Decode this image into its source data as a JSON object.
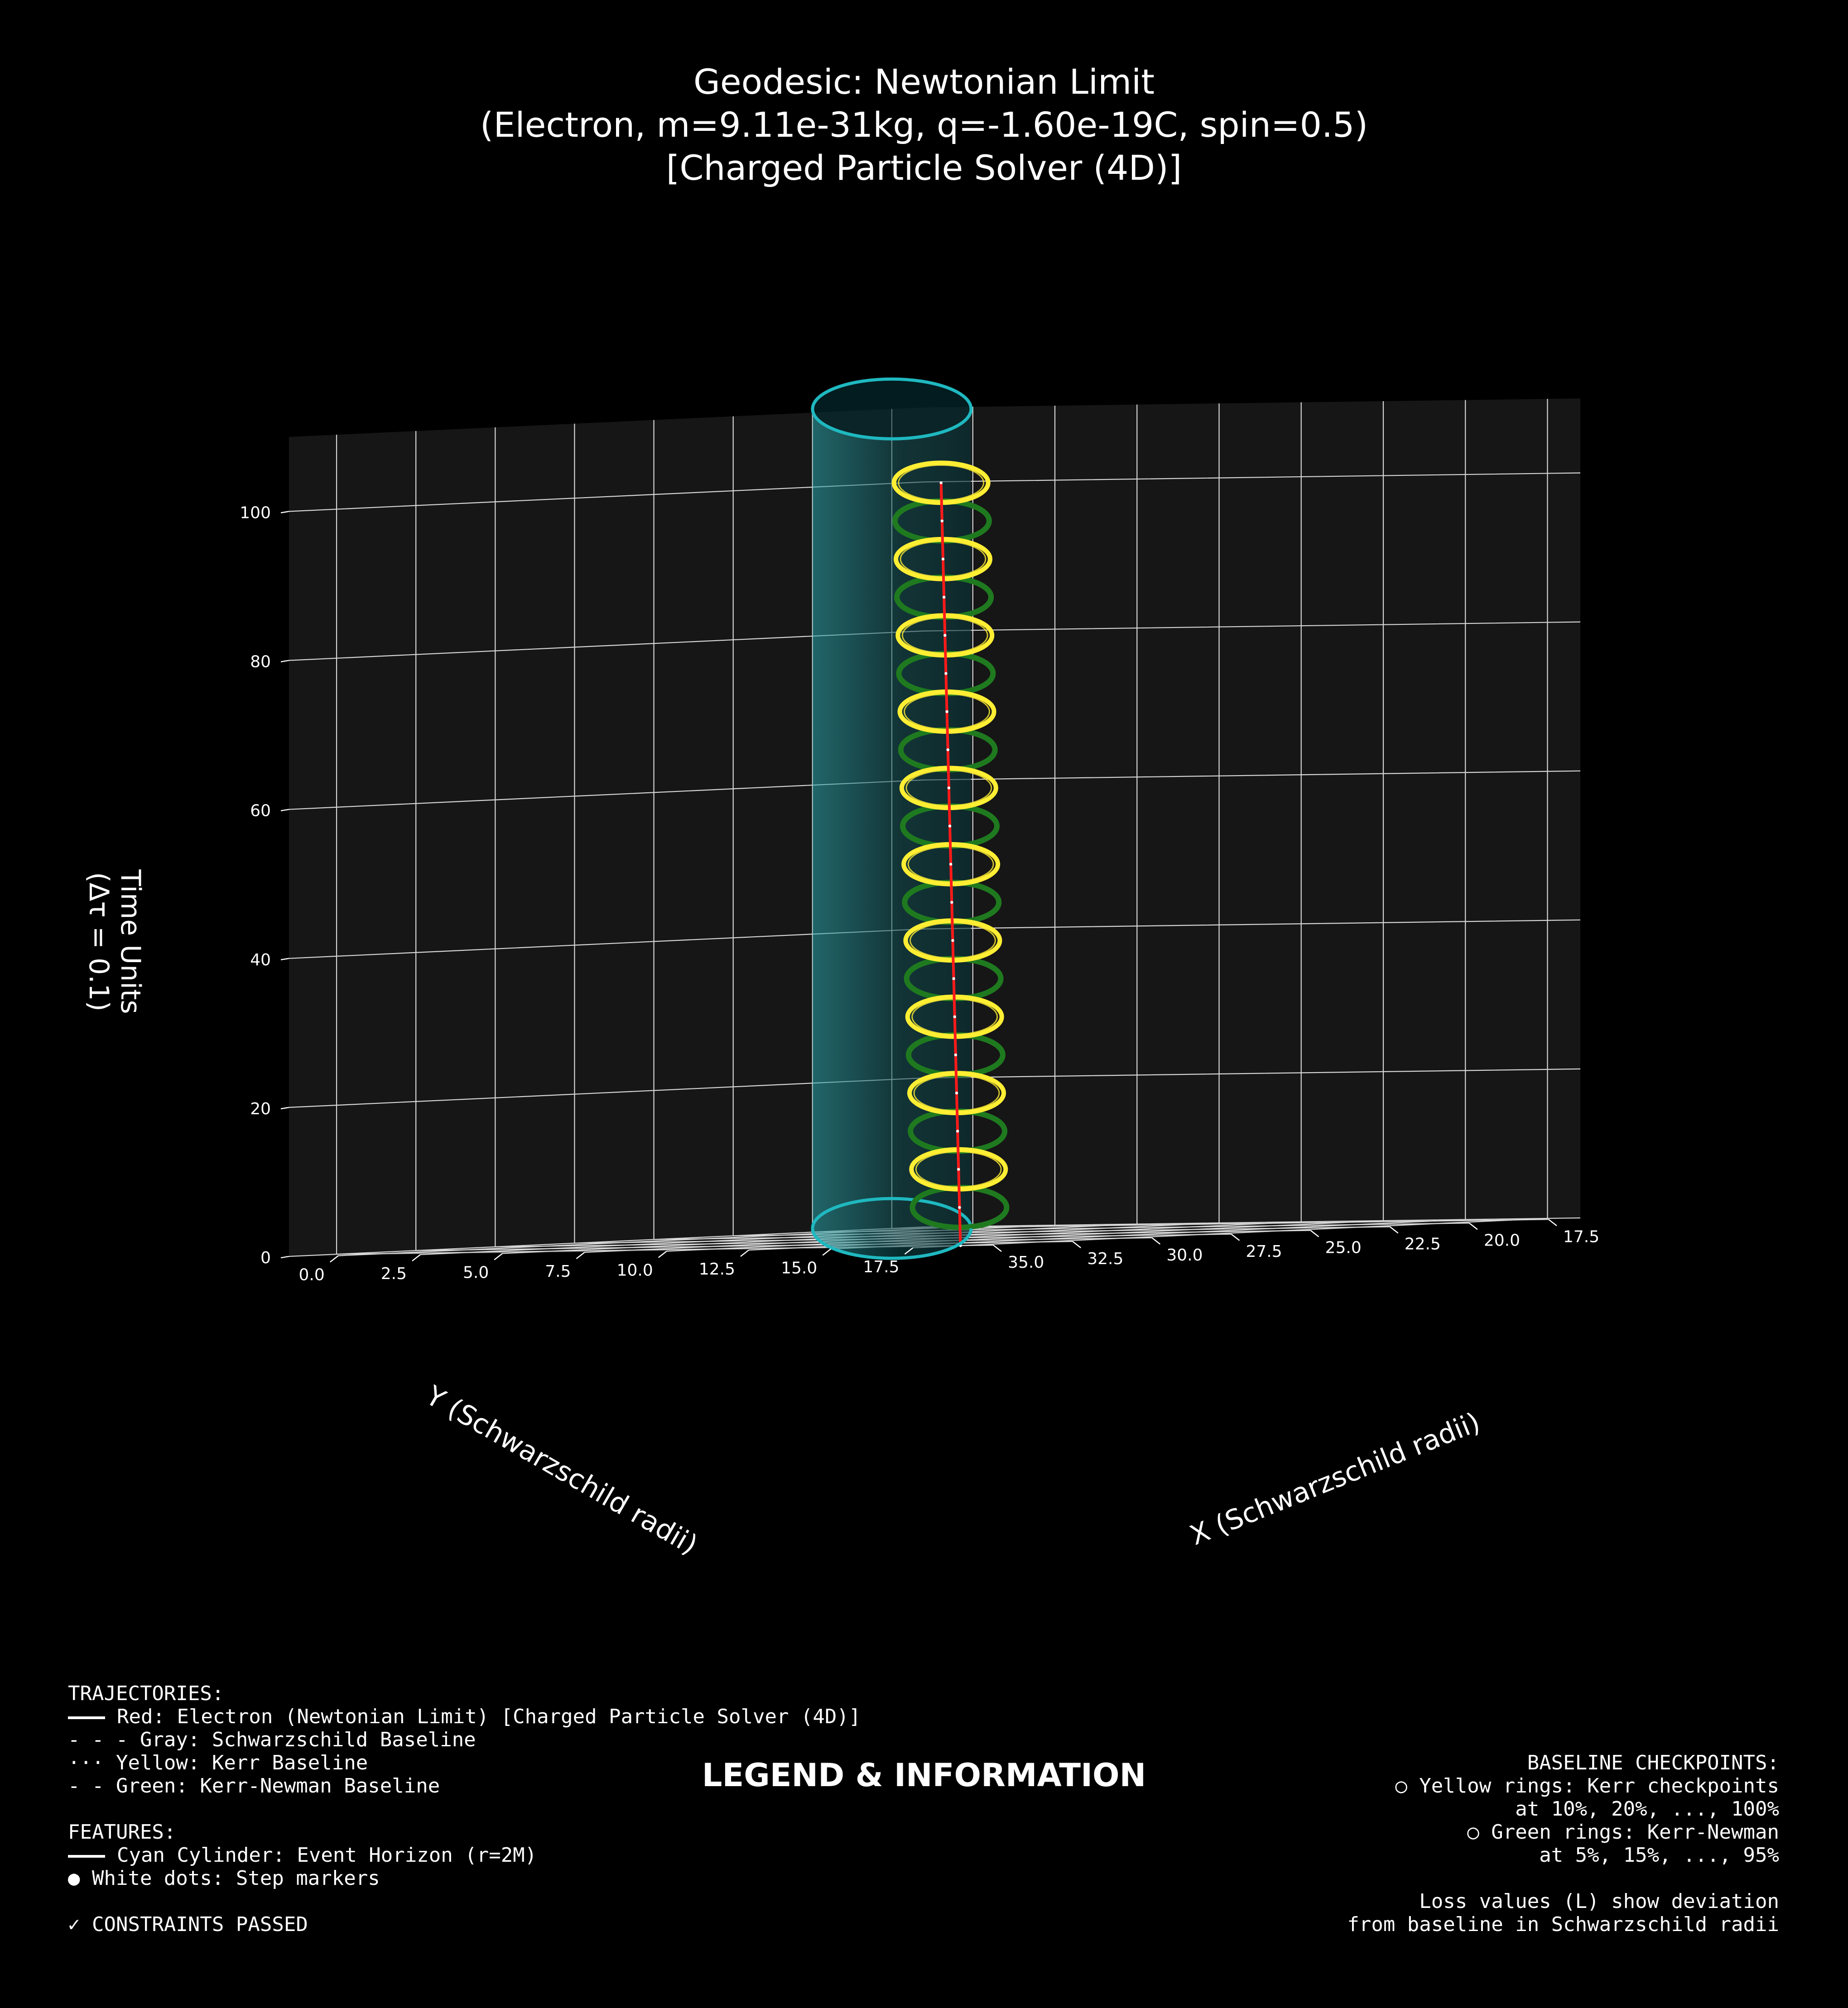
{
  "chart_data": {
    "type": "line",
    "projection": "3d",
    "title_lines": [
      "Geodesic: Newtonian Limit",
      "(Electron, m=9.11e-31kg, q=-1.60e-19C, spin=0.5)",
      "[Charged Particle Solver (4D)]"
    ],
    "xlabel": "X (Schwarzschild radii)",
    "ylabel": "Y (Schwarzschild radii)",
    "zlabel_lines": [
      "Time Units",
      "(Δτ = 0.1)"
    ],
    "xlim": [
      16.5,
      36.5
    ],
    "ylim": [
      -1.5,
      18.5
    ],
    "zlim": [
      0,
      110
    ],
    "x_ticks": [
      "17.5",
      "20.0",
      "22.5",
      "25.0",
      "27.5",
      "30.0",
      "32.5",
      "35.0"
    ],
    "y_ticks": [
      "0.0",
      "2.5",
      "5.0",
      "7.5",
      "10.0",
      "12.5",
      "15.0",
      "17.5"
    ],
    "z_ticks": [
      "0",
      "20",
      "40",
      "60",
      "80",
      "100"
    ],
    "grid": true,
    "colors": {
      "background": "#000000",
      "pane": "#161616",
      "trajectory": "#ff1a1a",
      "kerr_ring": "#ffee33",
      "kerr_newman_ring": "#1f7a1f",
      "horizon": "#1fb8c0",
      "step_marker": "#ffffff"
    },
    "series": [
      {
        "name": "Electron (Newtonian Limit) [Charged Particle Solver (4D)]",
        "start": [
          35.0,
          17.5,
          0
        ],
        "end": [
          17.5,
          0.0,
          100
        ]
      }
    ],
    "kerr_checkpoints": {
      "fractions": [
        0.1,
        0.2,
        0.3,
        0.4,
        0.5,
        0.6,
        0.7,
        0.8,
        0.9,
        1.0
      ],
      "radius": 1.0
    },
    "kerr_newman_checkpoints": {
      "fractions": [
        0.05,
        0.15,
        0.25,
        0.35,
        0.45,
        0.55,
        0.65,
        0.75,
        0.85,
        0.95
      ],
      "radius": 1.0
    },
    "event_horizon": {
      "center": [
        17.5,
        -1.5
      ],
      "radius": 1.0,
      "z_range": [
        0,
        110
      ]
    },
    "step_marker_count": 20
  },
  "legend": {
    "heading": "LEGEND & INFORMATION",
    "left_lines": [
      {
        "marker": "",
        "text": "TRAJECTORIES:"
      },
      {
        "marker": "line",
        "text": "Red: Electron (Newtonian Limit) [Charged Particle Solver (4D)]"
      },
      {
        "marker": "",
        "text": "- - - Gray: Schwarzschild Baseline"
      },
      {
        "marker": "",
        "text": "··· Yellow: Kerr Baseline"
      },
      {
        "marker": "",
        "text": "- - Green: Kerr-Newman Baseline"
      },
      {
        "marker": "",
        "text": ""
      },
      {
        "marker": "",
        "text": "FEATURES:"
      },
      {
        "marker": "line",
        "text": "Cyan Cylinder: Event Horizon (r=2M)"
      },
      {
        "marker": "",
        "text": "● White dots: Step markers"
      },
      {
        "marker": "",
        "text": ""
      },
      {
        "marker": "",
        "text": "✓ CONSTRAINTS PASSED"
      }
    ],
    "right_lines": [
      "BASELINE CHECKPOINTS:",
      "○ Yellow rings: Kerr checkpoints",
      "at 10%, 20%, ..., 100%",
      "○ Green rings: Kerr-Newman",
      "at 5%, 15%, ..., 95%",
      "",
      "Loss values (L) show deviation",
      "from baseline in Schwarzschild radii"
    ]
  }
}
